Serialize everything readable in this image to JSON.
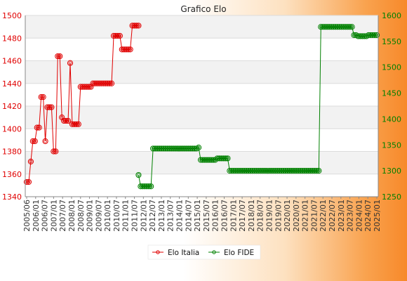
{
  "chart_data": {
    "type": "line",
    "title": "Grafico Elo",
    "xlabel": "",
    "ylabel": "",
    "grid": true,
    "legend_position": "bottom",
    "left_axis": {
      "ylim": [
        1340,
        1500
      ],
      "ticks": [
        1340,
        1360,
        1380,
        1400,
        1420,
        1440,
        1460,
        1480,
        1500
      ],
      "color": "#e00000"
    },
    "right_axis": {
      "ylim": [
        1250,
        1600
      ],
      "ticks": [
        1250,
        1300,
        1350,
        1400,
        1450,
        1500,
        1550,
        1600
      ],
      "color": "#008000"
    },
    "x_count": 170,
    "x_tick_labels": [
      "2005/06",
      "2006/01",
      "2006/07",
      "2007/01",
      "2007/07",
      "2008/01",
      "2008/07",
      "2009/01",
      "2009/07",
      "2010/01",
      "2010/07",
      "2011/01",
      "2011/07",
      "2012/01",
      "2012/07",
      "2013/01",
      "2013/07",
      "2014/01",
      "2014/07",
      "2015/01",
      "2015/07",
      "2016/01",
      "2016/07",
      "2017/01",
      "2017/07",
      "2018/01",
      "2018/07",
      "2019/01",
      "2019/07",
      "2020/01",
      "2020/07",
      "2021/01",
      "2021/07",
      "2022/01",
      "2022/07",
      "2023/01",
      "2023/07",
      "2024/01",
      "2024/07",
      "2025/01"
    ],
    "series": [
      {
        "name": "Elo Italia",
        "axis": "left",
        "color": "#e00000",
        "points": [
          [
            0,
            1353
          ],
          [
            1,
            1353
          ],
          [
            2,
            1371
          ],
          [
            3,
            1389
          ],
          [
            4,
            1389
          ],
          [
            5,
            1401
          ],
          [
            6,
            1401
          ],
          [
            7,
            1428
          ],
          [
            8,
            1428
          ],
          [
            9,
            1389
          ],
          [
            10,
            1419
          ],
          [
            11,
            1419
          ],
          [
            12,
            1419
          ],
          [
            13,
            1380
          ],
          [
            14,
            1380
          ],
          [
            15,
            1464
          ],
          [
            16,
            1464
          ],
          [
            17,
            1410
          ],
          [
            18,
            1407
          ],
          [
            19,
            1407
          ],
          [
            20,
            1407
          ],
          [
            21,
            1458
          ],
          [
            22,
            1404
          ],
          [
            23,
            1404
          ],
          [
            24,
            1404
          ],
          [
            25,
            1404
          ],
          [
            26,
            1437
          ],
          [
            27,
            1437
          ],
          [
            28,
            1437
          ],
          [
            29,
            1437
          ],
          [
            30,
            1437
          ],
          [
            31,
            1437
          ],
          [
            32,
            1440
          ],
          [
            33,
            1440
          ],
          [
            34,
            1440
          ],
          [
            35,
            1440
          ],
          [
            36,
            1440
          ],
          [
            37,
            1440
          ],
          [
            38,
            1440
          ],
          [
            39,
            1440
          ],
          [
            40,
            1440
          ],
          [
            41,
            1440
          ],
          [
            42,
            1482
          ],
          [
            43,
            1482
          ],
          [
            44,
            1482
          ],
          [
            45,
            1482
          ],
          [
            46,
            1470
          ],
          [
            47,
            1470
          ],
          [
            48,
            1470
          ],
          [
            49,
            1470
          ],
          [
            50,
            1470
          ],
          [
            51,
            1491
          ],
          [
            52,
            1491
          ],
          [
            53,
            1491
          ],
          [
            54,
            1491
          ]
        ]
      },
      {
        "name": "Elo FIDE",
        "axis": "right",
        "color": "#008000",
        "points": [
          [
            54,
            1292
          ],
          [
            55,
            1270
          ],
          [
            56,
            1270
          ],
          [
            57,
            1270
          ],
          [
            58,
            1270
          ],
          [
            59,
            1270
          ],
          [
            60,
            1270
          ],
          [
            61,
            1343
          ],
          [
            62,
            1343
          ],
          [
            63,
            1343
          ],
          [
            64,
            1343
          ],
          [
            65,
            1343
          ],
          [
            66,
            1343
          ],
          [
            67,
            1343
          ],
          [
            68,
            1343
          ],
          [
            69,
            1343
          ],
          [
            70,
            1343
          ],
          [
            71,
            1343
          ],
          [
            72,
            1343
          ],
          [
            73,
            1343
          ],
          [
            74,
            1343
          ],
          [
            75,
            1343
          ],
          [
            76,
            1343
          ],
          [
            77,
            1343
          ],
          [
            78,
            1343
          ],
          [
            79,
            1343
          ],
          [
            80,
            1343
          ],
          [
            81,
            1343
          ],
          [
            82,
            1343
          ],
          [
            83,
            1345
          ],
          [
            84,
            1321
          ],
          [
            85,
            1321
          ],
          [
            86,
            1321
          ],
          [
            87,
            1321
          ],
          [
            88,
            1321
          ],
          [
            89,
            1321
          ],
          [
            90,
            1321
          ],
          [
            91,
            1321
          ],
          [
            92,
            1324
          ],
          [
            93,
            1324
          ],
          [
            94,
            1324
          ],
          [
            95,
            1324
          ],
          [
            96,
            1324
          ],
          [
            97,
            1324
          ],
          [
            98,
            1300
          ],
          [
            99,
            1300
          ],
          [
            100,
            1300
          ],
          [
            101,
            1300
          ],
          [
            102,
            1300
          ],
          [
            103,
            1300
          ],
          [
            104,
            1300
          ],
          [
            105,
            1300
          ],
          [
            106,
            1300
          ],
          [
            107,
            1300
          ],
          [
            108,
            1300
          ],
          [
            109,
            1300
          ],
          [
            110,
            1300
          ],
          [
            111,
            1300
          ],
          [
            112,
            1300
          ],
          [
            113,
            1300
          ],
          [
            114,
            1300
          ],
          [
            115,
            1300
          ],
          [
            116,
            1300
          ],
          [
            117,
            1300
          ],
          [
            118,
            1300
          ],
          [
            119,
            1300
          ],
          [
            120,
            1300
          ],
          [
            121,
            1300
          ],
          [
            122,
            1300
          ],
          [
            123,
            1300
          ],
          [
            124,
            1300
          ],
          [
            125,
            1300
          ],
          [
            126,
            1300
          ],
          [
            127,
            1300
          ],
          [
            128,
            1300
          ],
          [
            129,
            1300
          ],
          [
            130,
            1300
          ],
          [
            131,
            1300
          ],
          [
            132,
            1300
          ],
          [
            133,
            1300
          ],
          [
            134,
            1300
          ],
          [
            135,
            1300
          ],
          [
            136,
            1300
          ],
          [
            137,
            1300
          ],
          [
            138,
            1300
          ],
          [
            139,
            1300
          ],
          [
            140,
            1300
          ],
          [
            141,
            1300
          ],
          [
            142,
            1578
          ],
          [
            143,
            1578
          ],
          [
            144,
            1578
          ],
          [
            145,
            1578
          ],
          [
            146,
            1578
          ],
          [
            147,
            1578
          ],
          [
            148,
            1578
          ],
          [
            149,
            1578
          ],
          [
            150,
            1578
          ],
          [
            151,
            1578
          ],
          [
            152,
            1578
          ],
          [
            153,
            1578
          ],
          [
            154,
            1578
          ],
          [
            155,
            1578
          ],
          [
            156,
            1578
          ],
          [
            157,
            1578
          ],
          [
            158,
            1562
          ],
          [
            159,
            1562
          ],
          [
            160,
            1560
          ],
          [
            161,
            1560
          ],
          [
            162,
            1560
          ],
          [
            163,
            1560
          ],
          [
            164,
            1560
          ],
          [
            165,
            1562
          ],
          [
            166,
            1562
          ],
          [
            167,
            1562
          ],
          [
            168,
            1562
          ],
          [
            169,
            1562
          ]
        ]
      }
    ]
  }
}
